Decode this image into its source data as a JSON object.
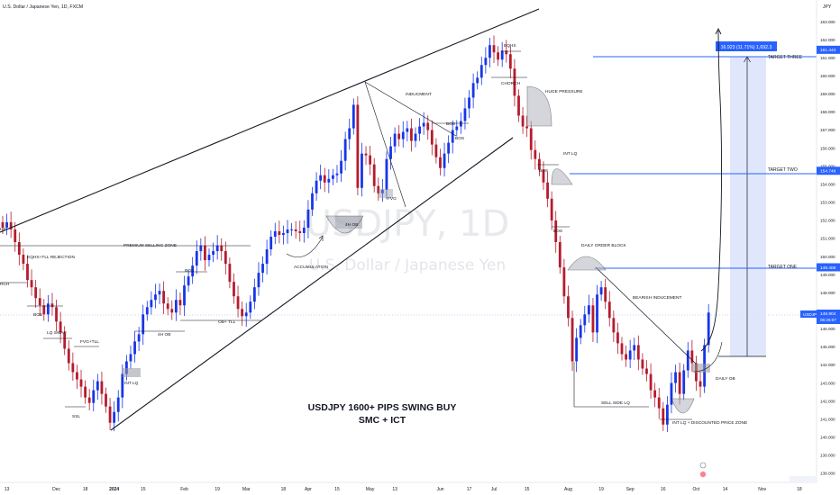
{
  "header": {
    "symbol_title": "U.S. Dollar / Japanese Yen, 1D, FXCM",
    "currency": "JPY"
  },
  "watermark": {
    "symbol": "USDJPY, 1D",
    "name": "U.S. Dollar / Japanese Yen"
  },
  "headline": {
    "line1": "USDJPY 1600+ PIPS SWING BUY",
    "line2": "SMC + ICT"
  },
  "chart_data": {
    "type": "candlestick",
    "symbol": "USDJPY",
    "ylim": [
      137.5,
      164.2
    ],
    "y_ticks": [
      138,
      139,
      140,
      141,
      142,
      143,
      144,
      145,
      146,
      147,
      148,
      149,
      150,
      151,
      152,
      153,
      154,
      155,
      156,
      157,
      158,
      159,
      160,
      161,
      162,
      163
    ],
    "y_tick_labels": [
      "138.000",
      "139.000",
      "140.000",
      "141.000",
      "142.000",
      "143.000",
      "144.000",
      "145.000",
      "146.000",
      "147.000",
      "148.000",
      "149.000",
      "150.000",
      "151.000",
      "152.000",
      "153.000",
      "154.000",
      "155.000",
      "156.000",
      "157.000",
      "158.000",
      "159.000",
      "160.000",
      "161.000",
      "162.000",
      "163.000"
    ],
    "x_ticks": [
      {
        "label": "13",
        "bar": 1
      },
      {
        "label": "Dec",
        "bar": 13
      },
      {
        "label": "18",
        "bar": 20
      },
      {
        "label": "2024",
        "bar": 27
      },
      {
        "label": "15",
        "bar": 34
      },
      {
        "label": "Feb",
        "bar": 44
      },
      {
        "label": "19",
        "bar": 52
      },
      {
        "label": "Mar",
        "bar": 59
      },
      {
        "label": "18",
        "bar": 68
      },
      {
        "label": "Apr",
        "bar": 74
      },
      {
        "label": "15",
        "bar": 81
      },
      {
        "label": "May",
        "bar": 89
      },
      {
        "label": "13",
        "bar": 95
      },
      {
        "label": "Jun",
        "bar": 106
      },
      {
        "label": "17",
        "bar": 113
      },
      {
        "label": "Jul",
        "bar": 119
      },
      {
        "label": "15",
        "bar": 127
      },
      {
        "label": "Aug",
        "bar": 137
      },
      {
        "label": "19",
        "bar": 145
      },
      {
        "label": "Sep",
        "bar": 152
      },
      {
        "label": "16",
        "bar": 160
      },
      {
        "label": "Oct",
        "bar": 168
      },
      {
        "label": "14",
        "bar": 175
      },
      {
        "label": "Nov",
        "bar": 184
      },
      {
        "label": "18",
        "bar": 193
      }
    ],
    "price_labels": [
      {
        "text": "161.443",
        "value": 161.443,
        "color": "#2962ff"
      },
      {
        "text": "154.746",
        "value": 154.746,
        "color": "#2962ff"
      },
      {
        "text": "149.406",
        "value": 149.406,
        "color": "#2962ff"
      }
    ],
    "current": {
      "symbol": "USDJPY",
      "price": "146.904",
      "value": 146.904,
      "countdown": "06:26:07",
      "color": "#2962ff"
    },
    "projection_label": "16.923 (11.71%) 1,692.3",
    "targets": [
      {
        "label": "TARGET THREE",
        "value": 161.443
      },
      {
        "label": "TARGET TWO",
        "value": 154.746
      },
      {
        "label": "TARGET ONE",
        "value": 149.406
      }
    ],
    "annotations": [
      "EQHS",
      "CHORCH",
      "INDUCMENT",
      "BOS",
      "HUGE PRESSURE",
      "INT LQ",
      "BOS",
      "BOS",
      "DAILY ORDER BLOCK",
      "BEARISH INDUCEMENT",
      "SELL SIDE LQ",
      "DAILY OB",
      "INT LQ + DISCOUNTED PRICE ZONE",
      "PREMIUM SELLING ZONE",
      "EQHS+TLL REJECTION",
      "BOS",
      "LQ SWAP",
      "FVG+TLL",
      "SSL",
      "INT LQ",
      "4H OB",
      "OB+ TLL",
      "ACCUMULATION",
      "4H OB",
      "FVG",
      "BOS",
      "BOS",
      "RCH",
      "HS"
    ],
    "closes": [
      151.6,
      151.9,
      151.5,
      150.8,
      150.1,
      149.6,
      148.7,
      148.3,
      147.7,
      147.3,
      146.8,
      147.4,
      147.2,
      146.4,
      145.8,
      144.9,
      144.1,
      143.6,
      143.2,
      142.8,
      142.2,
      141.9,
      142.6,
      143.1,
      142.4,
      141.7,
      140.8,
      141.4,
      142.2,
      143.5,
      144.2,
      144.6,
      145.3,
      145.7,
      146.8,
      147.2,
      147.6,
      147.9,
      148.1,
      147.4,
      147.1,
      146.9,
      147.6,
      147.3,
      148.4,
      148.9,
      149.5,
      150.3,
      150.6,
      149.8,
      150.1,
      150.3,
      150.6,
      150.3,
      149.6,
      148.6,
      147.8,
      147.1,
      146.7,
      146.9,
      147.5,
      148.3,
      149.1,
      149.6,
      150.4,
      151.1,
      151.4,
      151.2,
      151.3,
      151.5,
      151.5,
      151.4,
      151.3,
      151.6,
      152.6,
      153.5,
      154.2,
      154.5,
      154.1,
      154.3,
      154.5,
      154.6,
      155.3,
      156.5,
      157.1,
      158.4,
      153.8,
      155.7,
      155.6,
      155.1,
      153.9,
      153.5,
      153.7,
      155.4,
      156.1,
      156.8,
      156.5,
      156.9,
      157.1,
      156.4,
      156.8,
      157.2,
      157.4,
      157.0,
      156.2,
      155.5,
      154.9,
      155.7,
      156.3,
      157.0,
      157.2,
      157.5,
      158.2,
      158.8,
      159.6,
      159.9,
      160.6,
      161.0,
      161.7,
      161.3,
      160.9,
      161.4,
      161.2,
      160.4,
      158.9,
      157.8,
      157.2,
      157.1,
      155.9,
      155.4,
      154.8,
      154.1,
      153.2,
      152.0,
      150.8,
      149.4,
      147.8,
      146.6,
      144.2,
      145.5,
      146.2,
      146.8,
      147.3,
      145.8,
      147.9,
      148.3,
      147.5,
      146.6,
      145.8,
      145.2,
      144.6,
      144.3,
      144.8,
      145.1,
      144.3,
      143.8,
      143.5,
      142.6,
      142.2,
      141.6,
      140.7,
      141.8,
      143.0,
      143.6,
      142.4,
      143.7,
      144.8,
      144.1,
      143.1,
      142.8,
      145.1,
      146.9
    ],
    "notes": "Candlestick closes are approximate daily close prices estimated from the plotted candles (bars indexed from the left edge)."
  }
}
